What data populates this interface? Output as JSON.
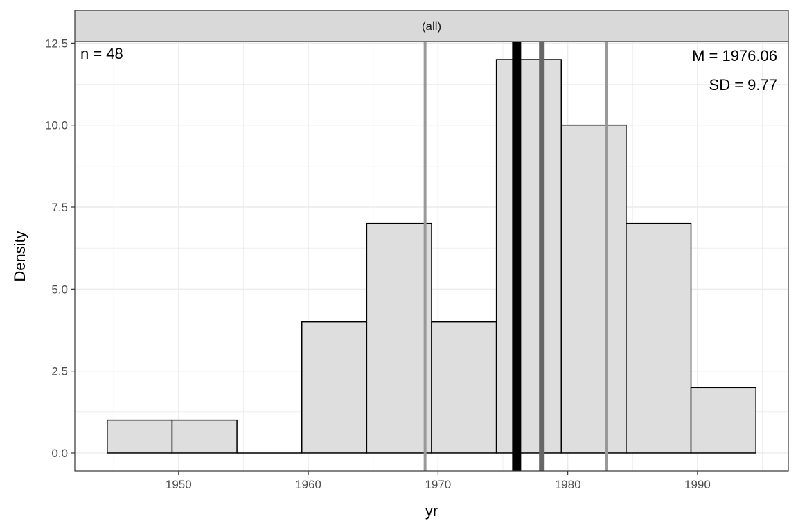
{
  "chart_data": {
    "type": "histogram",
    "facet_label": "(all)",
    "xlabel": "yr",
    "ylabel": "Density",
    "x_range": [
      1942,
      1997
    ],
    "y_range": [
      -0.55,
      12.55
    ],
    "x_ticks": [
      1950,
      1960,
      1970,
      1980,
      1990
    ],
    "y_ticks": [
      0.0,
      2.5,
      5.0,
      7.5,
      10.0,
      12.5
    ],
    "y_tick_labels": [
      "0.0",
      "2.5",
      "5.0",
      "7.5",
      "10.0",
      "12.5"
    ],
    "bins": [
      {
        "x0": 1944.5,
        "x1": 1949.5,
        "value": 1
      },
      {
        "x0": 1949.5,
        "x1": 1954.5,
        "value": 1
      },
      {
        "x0": 1954.5,
        "x1": 1959.5,
        "value": 0
      },
      {
        "x0": 1959.5,
        "x1": 1964.5,
        "value": 4
      },
      {
        "x0": 1964.5,
        "x1": 1969.5,
        "value": 7
      },
      {
        "x0": 1969.5,
        "x1": 1974.5,
        "value": 4
      },
      {
        "x0": 1974.5,
        "x1": 1979.5,
        "value": 12
      },
      {
        "x0": 1979.5,
        "x1": 1984.5,
        "value": 10
      },
      {
        "x0": 1984.5,
        "x1": 1989.5,
        "value": 7
      },
      {
        "x0": 1989.5,
        "x1": 1994.5,
        "value": 2
      }
    ],
    "vlines": [
      {
        "name": "q1",
        "x": 1969.0,
        "color": "#999999"
      },
      {
        "name": "mean",
        "x": 1976.06,
        "color": "#000000"
      },
      {
        "name": "median",
        "x": 1978.0,
        "color": "#666666"
      },
      {
        "name": "q3",
        "x": 1983.0,
        "color": "#999999"
      }
    ],
    "annotations": {
      "n": "n = 48",
      "mean": "M = 1976.06",
      "sd": "SD = 9.77"
    },
    "colors": {
      "bar_fill": "#dedede",
      "bar_stroke": "#000000",
      "strip_fill": "#d9d9d9",
      "grid": "#ebebeb",
      "panel_border": "#333333"
    },
    "grid": true
  }
}
